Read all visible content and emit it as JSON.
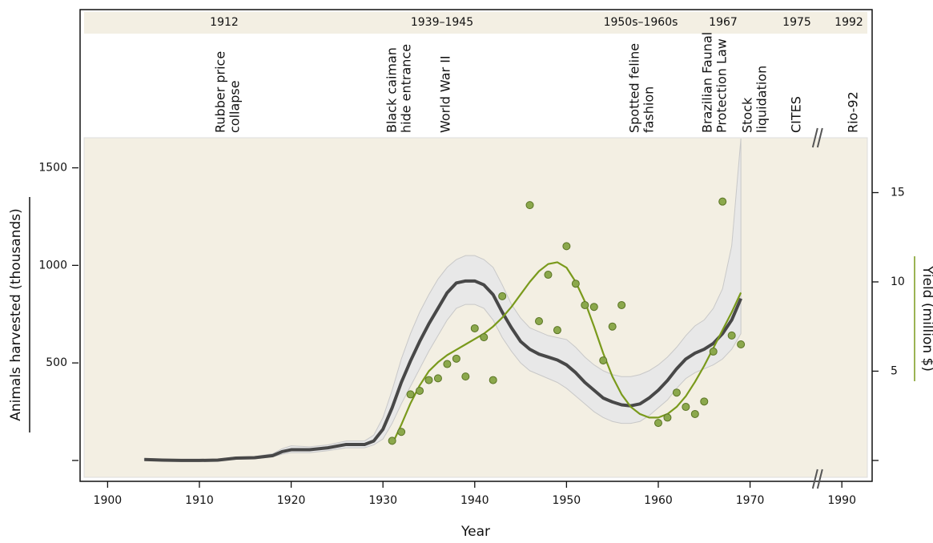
{
  "chart_data": {
    "type": "line",
    "x_label": "Year",
    "y_label": "Animals harvested (thousands)",
    "y2_label": "Yield (million $)",
    "periods": [
      "1912",
      "1939–1945",
      "1950s–1960s",
      "1967",
      "1975",
      "1992"
    ],
    "events": [
      [
        "Rubber price",
        "collapse"
      ],
      [
        "Black caiman",
        "hide entrance"
      ],
      [
        "World War II"
      ],
      [
        "Spotted feline",
        "fashion"
      ],
      [
        "Brazilian Faunal",
        "Protection Law"
      ],
      [
        "Stock",
        "liquidation"
      ],
      [
        "CITES"
      ],
      [
        "Rio-92"
      ]
    ],
    "xlim": [
      1897,
      1993.3
    ],
    "xbreak": [
      1977,
      1987
    ],
    "xticks": [
      1900,
      1910,
      1920,
      1930,
      1940,
      1950,
      1960,
      1970,
      1990
    ],
    "ylim": [
      -107,
      2311
    ],
    "yticks": [
      500,
      1000,
      1500
    ],
    "yticks_unlabeled": [
      0
    ],
    "y2lim": [
      -1.17,
      25.25
    ],
    "y2ticks": [
      5,
      10,
      15
    ],
    "y2ticks_unlabeled": [
      0
    ],
    "series": [
      {
        "color": "#484848",
        "band_color": "#e8e8e8",
        "x": [
          1904,
          1906,
          1908,
          1910,
          1912,
          1914,
          1916,
          1918,
          1919,
          1920,
          1922,
          1924,
          1926,
          1928,
          1929,
          1930,
          1931,
          1932,
          1933,
          1934,
          1935,
          1936,
          1937,
          1938,
          1939,
          1940,
          1941,
          1942,
          1943,
          1944,
          1945,
          1946,
          1947,
          1948,
          1949,
          1950,
          1951,
          1952,
          1953,
          1954,
          1955,
          1956,
          1957,
          1958,
          1959,
          1960,
          1961,
          1962,
          1963,
          1964,
          1965,
          1966,
          1967,
          1968,
          1969
        ],
        "values": [
          5,
          2,
          0,
          0,
          2,
          12,
          14,
          25,
          45,
          55,
          55,
          65,
          82,
          82,
          100,
          160,
          270,
          400,
          510,
          610,
          700,
          780,
          860,
          910,
          920,
          920,
          900,
          850,
          760,
          680,
          610,
          570,
          545,
          530,
          515,
          490,
          450,
          400,
          360,
          320,
          300,
          285,
          280,
          290,
          320,
          360,
          410,
          470,
          520,
          550,
          570,
          600,
          650,
          720,
          830
        ],
        "upper": [
          10,
          7,
          5,
          5,
          7,
          18,
          20,
          35,
          60,
          75,
          70,
          80,
          100,
          100,
          130,
          220,
          360,
          520,
          650,
          760,
          850,
          930,
          990,
          1030,
          1050,
          1050,
          1030,
          990,
          900,
          800,
          730,
          680,
          660,
          640,
          630,
          620,
          580,
          530,
          490,
          460,
          440,
          430,
          430,
          440,
          460,
          490,
          530,
          580,
          640,
          690,
          720,
          780,
          880,
          1100,
          1650
        ],
        "lower": [
          2,
          0,
          -3,
          -4,
          -2,
          6,
          8,
          18,
          32,
          40,
          40,
          50,
          65,
          65,
          80,
          110,
          190,
          290,
          380,
          470,
          560,
          640,
          720,
          780,
          800,
          800,
          780,
          720,
          630,
          560,
          500,
          460,
          440,
          420,
          400,
          370,
          330,
          290,
          250,
          220,
          200,
          190,
          190,
          200,
          230,
          270,
          310,
          370,
          420,
          450,
          470,
          490,
          520,
          570,
          650
        ]
      },
      {
        "color": "#7a9a1c",
        "axis": "y2",
        "x": [
          1931,
          1932,
          1933,
          1934,
          1935,
          1936,
          1937,
          1938,
          1939,
          1940,
          1941,
          1942,
          1943,
          1944,
          1945,
          1946,
          1947,
          1948,
          1949,
          1950,
          1951,
          1952,
          1953,
          1954,
          1955,
          1956,
          1957,
          1958,
          1959,
          1960,
          1961,
          1962,
          1963,
          1964,
          1965,
          1966,
          1967,
          1968,
          1969
        ],
        "values": [
          0.9,
          2.0,
          3.2,
          4.2,
          5.0,
          5.5,
          5.9,
          6.2,
          6.5,
          6.8,
          7.1,
          7.5,
          8.0,
          8.6,
          9.3,
          10.0,
          10.6,
          11.0,
          11.1,
          10.8,
          10.0,
          8.9,
          7.5,
          6.0,
          4.7,
          3.7,
          3.0,
          2.6,
          2.4,
          2.4,
          2.6,
          3.0,
          3.6,
          4.4,
          5.3,
          6.3,
          7.3,
          8.3,
          9.4
        ]
      }
    ],
    "points": {
      "color": "#8ba84c",
      "axis": "y2",
      "x": [
        1931,
        1932,
        1933,
        1934,
        1935,
        1936,
        1937,
        1938,
        1939,
        1940,
        1941,
        1942,
        1943,
        1946,
        1947,
        1948,
        1949,
        1950,
        1951,
        1952,
        1953,
        1954,
        1955,
        1956,
        1960,
        1961,
        1962,
        1963,
        1964,
        1965,
        1966,
        1967,
        1968,
        1969
      ],
      "values": [
        1.1,
        1.6,
        3.7,
        3.9,
        4.5,
        4.6,
        5.4,
        5.7,
        4.7,
        7.4,
        6.9,
        4.5,
        9.2,
        14.3,
        7.8,
        10.4,
        7.3,
        12.0,
        9.9,
        8.7,
        8.6,
        5.6,
        7.5,
        8.7,
        2.1,
        2.4,
        3.8,
        3.0,
        2.6,
        3.3,
        6.1,
        14.5,
        7.0,
        6.5
      ]
    }
  }
}
